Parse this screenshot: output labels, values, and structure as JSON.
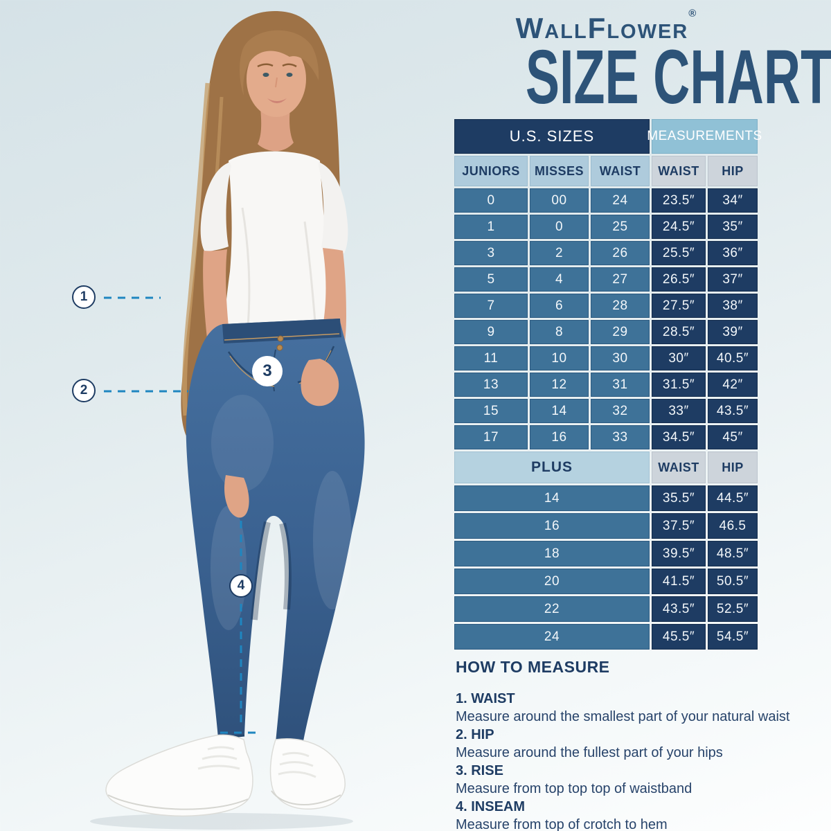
{
  "header": {
    "brand": "WallFlower",
    "registered_mark": "®",
    "title": "SIZE CHART"
  },
  "table": {
    "us_sizes_header": "U.S. SIZES",
    "measurements_header": "MEASUREMENTS",
    "us_columns": [
      "JUNIORS",
      "MISSES",
      "WAIST"
    ],
    "measurement_columns": [
      "WAIST",
      "HIP"
    ],
    "plus_header": "PLUS",
    "plus_columns": [
      "WAIST",
      "HIP"
    ]
  },
  "chart_data": [
    {
      "type": "table",
      "title": "U.S. SIZES / MEASUREMENTS",
      "columns": [
        "JUNIORS",
        "MISSES",
        "WAIST",
        "WAIST",
        "HIP"
      ],
      "rows": [
        [
          "0",
          "00",
          "24",
          "23.5″",
          "34″"
        ],
        [
          "1",
          "0",
          "25",
          "24.5″",
          "35″"
        ],
        [
          "3",
          "2",
          "26",
          "25.5″",
          "36″"
        ],
        [
          "5",
          "4",
          "27",
          "26.5″",
          "37″"
        ],
        [
          "7",
          "6",
          "28",
          "27.5″",
          "38″"
        ],
        [
          "9",
          "8",
          "29",
          "28.5″",
          "39″"
        ],
        [
          "11",
          "10",
          "30",
          "30″",
          "40.5″"
        ],
        [
          "13",
          "12",
          "31",
          "31.5″",
          "42″"
        ],
        [
          "15",
          "14",
          "32",
          "33″",
          "43.5″"
        ],
        [
          "17",
          "16",
          "33",
          "34.5″",
          "45″"
        ]
      ]
    },
    {
      "type": "table",
      "title": "PLUS",
      "columns": [
        "PLUS",
        "WAIST",
        "HIP"
      ],
      "rows": [
        [
          "14",
          "35.5″",
          "44.5″"
        ],
        [
          "16",
          "37.5″",
          "46.5"
        ],
        [
          "18",
          "39.5″",
          "48.5″"
        ],
        [
          "20",
          "41.5″",
          "50.5″"
        ],
        [
          "22",
          "43.5″",
          "52.5″"
        ],
        [
          "24",
          "45.5″",
          "54.5″"
        ]
      ]
    }
  ],
  "how_to_measure": {
    "heading": "HOW TO MEASURE",
    "items": [
      {
        "title": "1. WAIST",
        "description": "Measure around the smallest part of your natural waist"
      },
      {
        "title": "2. HIP",
        "description": "Measure around the fullest part of your hips"
      },
      {
        "title": "3. RISE",
        "description": "Measure from top top top of waistband"
      },
      {
        "title": "4. INSEAM",
        "description": "Measure from top of crotch to hem"
      }
    ]
  },
  "markers": [
    "1",
    "2",
    "3",
    "4"
  ],
  "colors": {
    "table_navy": "#1e3c63",
    "table_steel": "#3e7298",
    "header_light_blue": "#aecbdc",
    "header_gray": "#cdd4db",
    "measurements_blue": "#90c1d6",
    "plus_blue": "#b5d2e0",
    "title_navy": "#2d5378",
    "dash_blue": "#1f86c0"
  }
}
